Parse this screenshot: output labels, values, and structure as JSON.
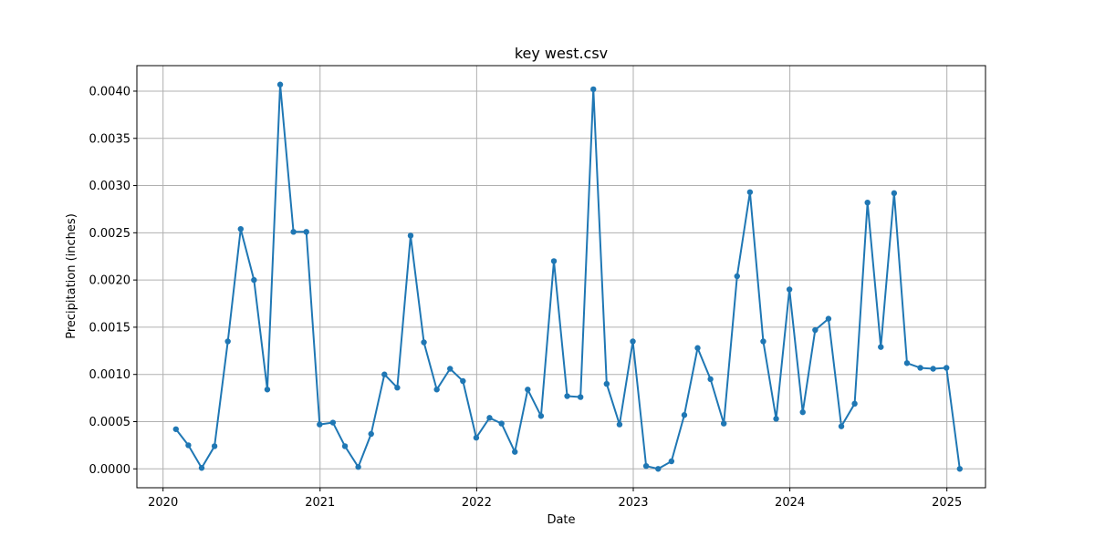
{
  "chart_data": {
    "type": "line",
    "title": "key west.csv",
    "xlabel": "Date",
    "ylabel": "Precipitation (inches)",
    "x_is_date": true,
    "xlim": [
      "2019-11-01",
      "2025-04-01"
    ],
    "ylim": [
      -0.0002,
      0.00427
    ],
    "x_ticks": [
      "2020-01-01",
      "2021-01-01",
      "2022-01-01",
      "2023-01-01",
      "2024-01-01",
      "2025-01-01"
    ],
    "x_tick_labels": [
      "2020",
      "2021",
      "2022",
      "2023",
      "2024",
      "2025"
    ],
    "y_ticks": [
      0.0,
      0.0005,
      0.001,
      0.0015,
      0.002,
      0.0025,
      0.003,
      0.0035,
      0.004
    ],
    "y_tick_labels": [
      "0.0000",
      "0.0005",
      "0.0010",
      "0.0015",
      "0.0020",
      "0.0025",
      "0.0030",
      "0.0035",
      "0.0040"
    ],
    "grid": true,
    "color": "#1f77b4",
    "series": [
      {
        "x": [
          "2020-01-31",
          "2020-02-29",
          "2020-03-31",
          "2020-04-30",
          "2020-05-31",
          "2020-06-30",
          "2020-07-31",
          "2020-08-31",
          "2020-09-30",
          "2020-10-31",
          "2020-11-30",
          "2020-12-31",
          "2021-01-31",
          "2021-02-28",
          "2021-03-31",
          "2021-04-30",
          "2021-05-31",
          "2021-06-30",
          "2021-07-31",
          "2021-08-31",
          "2021-09-30",
          "2021-10-31",
          "2021-11-30",
          "2021-12-31",
          "2022-01-31",
          "2022-02-28",
          "2022-03-31",
          "2022-04-30",
          "2022-05-31",
          "2022-06-30",
          "2022-07-31",
          "2022-08-31",
          "2022-09-30",
          "2022-10-31",
          "2022-11-30",
          "2022-12-31",
          "2023-01-31",
          "2023-02-28",
          "2023-03-31",
          "2023-04-30",
          "2023-05-31",
          "2023-06-30",
          "2023-07-31",
          "2023-08-31",
          "2023-09-30",
          "2023-10-31",
          "2023-11-30",
          "2023-12-31",
          "2024-01-31",
          "2024-02-29",
          "2024-03-31",
          "2024-04-30",
          "2024-05-31",
          "2024-06-30",
          "2024-07-31",
          "2024-08-31",
          "2024-09-30",
          "2024-10-31",
          "2024-11-30",
          "2024-12-31",
          "2025-01-31"
        ],
        "values": [
          0.00042,
          0.00025,
          1e-05,
          0.00024,
          0.00135,
          0.00254,
          0.002,
          0.00084,
          0.00407,
          0.00251,
          0.00251,
          0.00047,
          0.00049,
          0.00024,
          2e-05,
          0.00037,
          0.001,
          0.00086,
          0.00247,
          0.00134,
          0.00084,
          0.00106,
          0.00093,
          0.00033,
          0.00054,
          0.00048,
          0.00018,
          0.00084,
          0.00056,
          0.0022,
          0.00077,
          0.00076,
          0.00402,
          0.0009,
          0.00047,
          0.00135,
          3e-05,
          0.0,
          8e-05,
          0.00057,
          0.00128,
          0.00095,
          0.00048,
          0.00204,
          0.00293,
          0.00135,
          0.00053,
          0.0019,
          0.0006,
          0.00147,
          0.00159,
          0.00045,
          0.00069,
          0.00282,
          0.00129,
          0.00292,
          0.00112,
          0.00107,
          0.00106,
          0.00107,
          0.0
        ]
      }
    ]
  }
}
